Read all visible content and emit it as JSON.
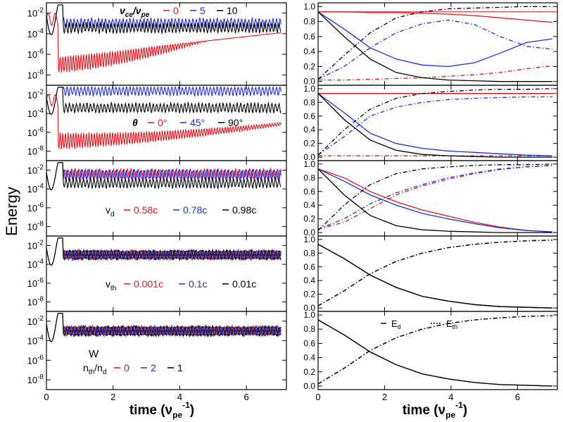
{
  "figure": {
    "ylabel": "Energy",
    "xlabel_left": "time (ν",
    "xlabel_right": "time (ν",
    "xlabel_sub": "pe",
    "xlabel_sup": "-1",
    "xlabel_close": ")",
    "colors": {
      "red": "#e8141e",
      "blue": "#1c2ee6",
      "black": "#000000",
      "frame": "#000000"
    }
  },
  "chart_data": {
    "type": "line",
    "x_range": [
      0,
      7.2
    ],
    "x_ticks": [
      0,
      2,
      4,
      6
    ],
    "x_ticklabels": [
      "0",
      "2",
      "4",
      "6"
    ],
    "left_column": {
      "scale": "log",
      "y_range_exp": [
        -9,
        -1
      ],
      "y_ticks_exp": [
        -2,
        -4,
        -6,
        -8
      ]
    },
    "right_column": {
      "scale": "linear",
      "y_range": [
        -0.05,
        1.05
      ],
      "y_ticks": [
        0.0,
        0.2,
        0.4,
        0.6,
        0.8,
        1.0
      ],
      "y_ticklabels": [
        "0.0",
        "0.2",
        "0.4",
        "0.6",
        "0.8",
        "1.0"
      ],
      "legend": {
        "solid_label": "E",
        "solid_sub": "d",
        "dashed_label": "E",
        "dashed_sub": "th"
      }
    },
    "rows": [
      {
        "param_label": "ν",
        "param_sub": "ce",
        "param_label2": "/ν",
        "param_sub2": "pe",
        "series": [
          {
            "value": "0",
            "color": "red",
            "left": {
              "level": -6.9,
              "end": -3.4,
              "start_low": -8.3
            },
            "right": {
              "ed": [
                0.93,
                0.93,
                0.92,
                0.92,
                0.91,
                0.9,
                0.88,
                0.85,
                0.82,
                0.79
              ],
              "eth": [
                0.02,
                0.02,
                0.03,
                0.04,
                0.05,
                0.07,
                0.09,
                0.12,
                0.17,
                0.21
              ]
            }
          },
          {
            "value": "5",
            "color": "blue",
            "left": {
              "level": -3.0,
              "end": -3.0
            },
            "right": {
              "ed": [
                0.93,
                0.7,
                0.45,
                0.3,
                0.22,
                0.2,
                0.25,
                0.38,
                0.52,
                0.57
              ],
              "eth": [
                0.03,
                0.2,
                0.45,
                0.65,
                0.77,
                0.82,
                0.76,
                0.6,
                0.47,
                0.43
              ]
            }
          },
          {
            "value": "10",
            "color": "black",
            "left": {
              "level": -3.4,
              "end": -3.4
            },
            "right": {
              "ed": [
                0.93,
                0.6,
                0.3,
                0.12,
                0.05,
                0.02,
                0.01,
                0.0,
                0.0,
                0.0
              ],
              "eth": [
                0.03,
                0.35,
                0.65,
                0.85,
                0.93,
                0.97,
                0.98,
                0.99,
                1.0,
                1.0
              ]
            }
          }
        ],
        "extra_line": 0.93
      },
      {
        "param_label": "θ",
        "param_sub": "",
        "param_label2": "",
        "param_sub2": "",
        "series": [
          {
            "value": "0°",
            "color": "red",
            "left": {
              "level": -6.3,
              "end": -6.5,
              "start_low": -8.3
            },
            "right": {
              "ed": [
                0.93,
                0.93,
                0.93,
                0.93,
                0.93,
                0.93,
                0.93,
                0.93,
                0.93,
                0.93
              ],
              "eth": [
                0.02,
                0.02,
                0.02,
                0.02,
                0.02,
                0.02,
                0.02,
                0.02,
                0.02,
                0.02
              ]
            }
          },
          {
            "value": "45°",
            "color": "blue",
            "left": {
              "level": -1.6,
              "end": -1.6
            },
            "right": {
              "ed": [
                0.93,
                0.65,
                0.35,
                0.2,
                0.13,
                0.09,
                0.07,
                0.05,
                0.03,
                0.02
              ],
              "eth": [
                0.03,
                0.3,
                0.6,
                0.73,
                0.8,
                0.84,
                0.86,
                0.87,
                0.88,
                0.88
              ]
            }
          },
          {
            "value": "90°",
            "color": "black",
            "left": {
              "level": -3.4,
              "end": -3.4
            },
            "right": {
              "ed": [
                0.93,
                0.55,
                0.25,
                0.1,
                0.04,
                0.02,
                0.01,
                0.0,
                0.0,
                0.0
              ],
              "eth": [
                0.03,
                0.4,
                0.7,
                0.86,
                0.93,
                0.96,
                0.98,
                0.99,
                0.99,
                1.0
              ]
            }
          }
        ],
        "extra_line": 0.93
      },
      {
        "param_label": "v",
        "param_sub": "d",
        "param_label2": "",
        "param_sub2": "",
        "series": [
          {
            "value": "0.58c",
            "color": "red",
            "left": {
              "level": -2.4,
              "end": -2.4
            },
            "right": {
              "ed": [
                0.93,
                0.8,
                0.6,
                0.45,
                0.33,
                0.24,
                0.15,
                0.08,
                0.03,
                0.01
              ],
              "eth": [
                0.05,
                0.15,
                0.35,
                0.55,
                0.68,
                0.78,
                0.86,
                0.92,
                0.96,
                0.98
              ]
            }
          },
          {
            "value": "0.78c",
            "color": "blue",
            "left": {
              "level": -2.5,
              "end": -2.5
            },
            "right": {
              "ed": [
                0.93,
                0.75,
                0.55,
                0.4,
                0.28,
                0.2,
                0.13,
                0.07,
                0.03,
                0.01
              ],
              "eth": [
                0.05,
                0.2,
                0.42,
                0.58,
                0.7,
                0.8,
                0.87,
                0.93,
                0.96,
                0.98
              ]
            }
          },
          {
            "value": "0.98c",
            "color": "black",
            "left": {
              "level": -3.4,
              "end": -3.4
            },
            "right": {
              "ed": [
                0.93,
                0.55,
                0.25,
                0.1,
                0.04,
                0.02,
                0.01,
                0.0,
                0.0,
                0.0
              ],
              "eth": [
                0.03,
                0.4,
                0.7,
                0.86,
                0.93,
                0.96,
                0.98,
                0.99,
                0.99,
                1.0
              ]
            }
          }
        ]
      },
      {
        "param_label": "v",
        "param_sub": "th",
        "param_label2": "",
        "param_sub2": "",
        "series": [
          {
            "value": "0.001c",
            "color": "red",
            "left": {
              "level": -3.0,
              "end": -3.0
            },
            "right": {
              "ed": [
                0.93,
                0.72,
                0.48,
                0.3,
                0.17,
                0.1,
                0.05,
                0.02,
                0.01,
                0.0
              ],
              "eth": [
                0.03,
                0.25,
                0.5,
                0.68,
                0.8,
                0.88,
                0.93,
                0.96,
                0.98,
                0.99
              ]
            }
          },
          {
            "value": "0.1c",
            "color": "blue",
            "left": {
              "level": -3.0,
              "end": -3.0
            },
            "right": {
              "ed": [
                0.93,
                0.72,
                0.48,
                0.3,
                0.17,
                0.1,
                0.05,
                0.02,
                0.01,
                0.0
              ],
              "eth": [
                0.03,
                0.25,
                0.5,
                0.68,
                0.8,
                0.88,
                0.93,
                0.96,
                0.98,
                0.99
              ]
            }
          },
          {
            "value": "0.01c",
            "color": "black",
            "left": {
              "level": -3.0,
              "end": -3.0
            },
            "right": {
              "ed": [
                0.93,
                0.72,
                0.48,
                0.3,
                0.17,
                0.1,
                0.05,
                0.02,
                0.01,
                0.0
              ],
              "eth": [
                0.03,
                0.25,
                0.5,
                0.68,
                0.8,
                0.88,
                0.93,
                0.96,
                0.98,
                0.99
              ]
            }
          }
        ]
      },
      {
        "param_label": "n",
        "param_sub": "th",
        "param_label2": "/n",
        "param_sub2": "d",
        "extra_text": "W",
        "series": [
          {
            "value": "0",
            "color": "red",
            "left": {
              "level": -3.0,
              "end": -3.0
            },
            "right": {
              "ed": [
                0.93,
                0.72,
                0.48,
                0.3,
                0.17,
                0.1,
                0.05,
                0.02,
                0.01,
                0.0
              ],
              "eth": [
                0.03,
                0.25,
                0.5,
                0.68,
                0.8,
                0.88,
                0.93,
                0.96,
                0.98,
                0.99
              ]
            }
          },
          {
            "value": "2",
            "color": "blue",
            "left": {
              "level": -3.0,
              "end": -3.0
            },
            "right": {
              "ed": [
                0.93,
                0.72,
                0.48,
                0.3,
                0.17,
                0.1,
                0.05,
                0.02,
                0.01,
                0.0
              ],
              "eth": [
                0.03,
                0.25,
                0.5,
                0.68,
                0.8,
                0.88,
                0.93,
                0.96,
                0.98,
                0.99
              ]
            }
          },
          {
            "value": "1",
            "color": "black",
            "left": {
              "level": -3.0,
              "end": -3.0
            },
            "right": {
              "ed": [
                0.93,
                0.72,
                0.48,
                0.3,
                0.17,
                0.1,
                0.05,
                0.02,
                0.01,
                0.0
              ],
              "eth": [
                0.03,
                0.25,
                0.5,
                0.68,
                0.8,
                0.88,
                0.93,
                0.96,
                0.98,
                0.99
              ]
            }
          }
        ],
        "show_energy_legend": true
      }
    ]
  }
}
